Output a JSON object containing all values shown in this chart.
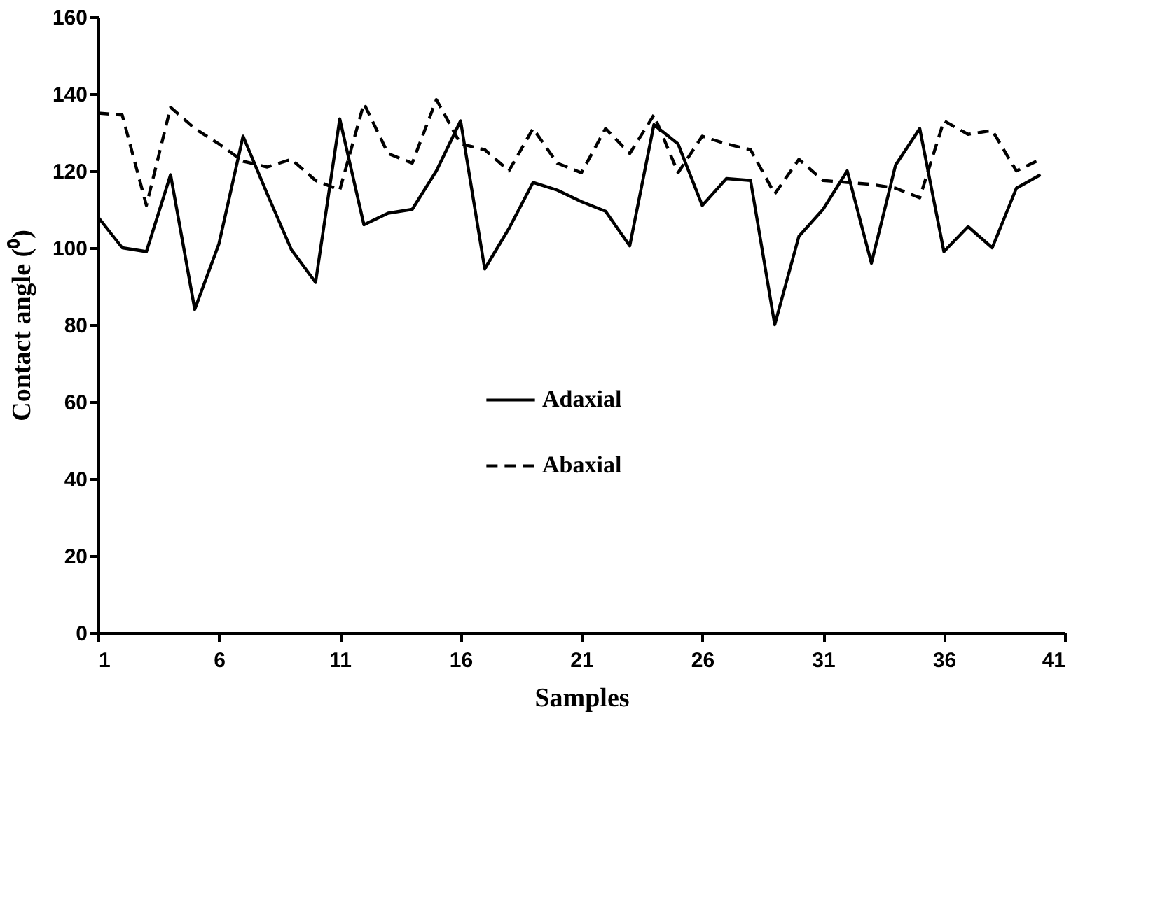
{
  "chart_data": {
    "type": "line",
    "xlabel": "Samples",
    "ylabel": "Contact angle (⁰)",
    "x": [
      1,
      2,
      3,
      4,
      5,
      6,
      7,
      8,
      9,
      10,
      11,
      12,
      13,
      14,
      15,
      16,
      17,
      18,
      19,
      20,
      21,
      22,
      23,
      24,
      25,
      26,
      27,
      28,
      29,
      30,
      31,
      32,
      33,
      34,
      35,
      36,
      37,
      38,
      39,
      40
    ],
    "series": [
      {
        "name": "Adaxial",
        "color": "#000000",
        "line_style": "solid",
        "values": [
          108,
          100,
          99,
          119,
          84,
          101,
          129,
          114,
          99.5,
          91,
          133.5,
          106,
          109,
          110,
          120,
          133,
          94.5,
          105,
          117,
          115,
          112,
          109.5,
          100.5,
          132,
          127,
          111,
          118,
          117.5,
          80,
          103,
          110,
          120,
          96,
          121.5,
          131,
          99,
          105.5,
          100,
          115.5,
          119
        ]
      },
      {
        "name": "Abaxial",
        "color": "#000000",
        "line_style": "dashed",
        "values": [
          135,
          134.5,
          111,
          136.5,
          131,
          127,
          122.5,
          121,
          123,
          117.5,
          115,
          137.5,
          124.5,
          122,
          138.5,
          127,
          125.5,
          120,
          131,
          122,
          119.5,
          131,
          124.5,
          134.5,
          119.5,
          129,
          127,
          125.5,
          114,
          123,
          117.5,
          117,
          116.5,
          115.5,
          113,
          133,
          129.5,
          130.5,
          120,
          123
        ]
      }
    ],
    "xlim": [
      1,
      41
    ],
    "xticks": [
      1,
      6,
      11,
      16,
      21,
      26,
      31,
      36,
      41
    ],
    "ylim": [
      0,
      160
    ],
    "yticks": [
      0,
      20,
      40,
      60,
      80,
      100,
      120,
      140,
      160
    ],
    "grid": false,
    "legend": "center",
    "marker": "none"
  }
}
